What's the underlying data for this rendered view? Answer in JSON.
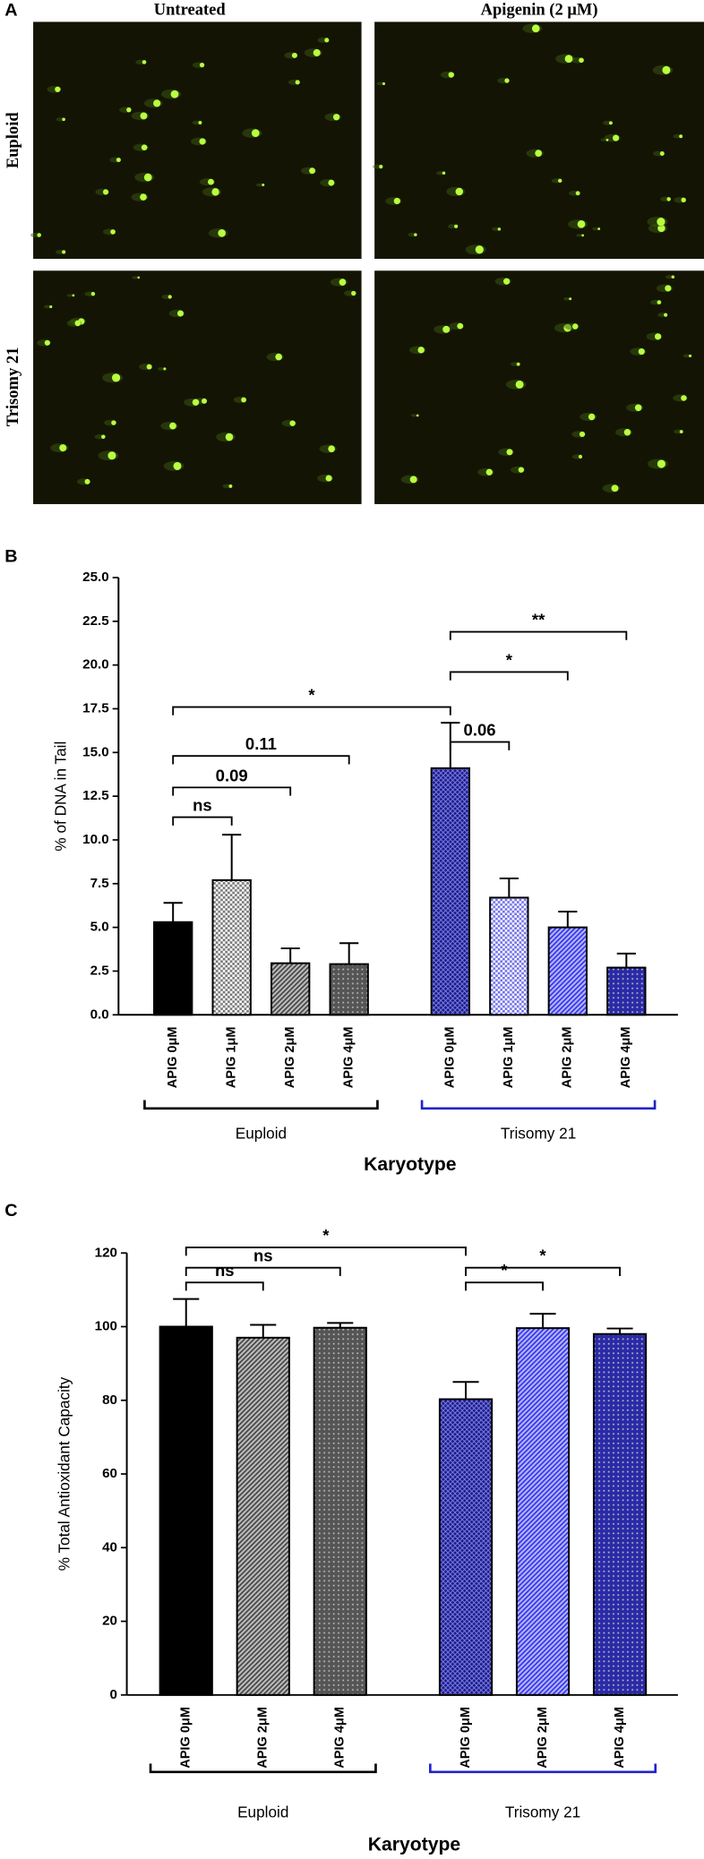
{
  "panel_a": {
    "label": "A",
    "columns": [
      "Untreated",
      "Apigenin (2 μM)"
    ],
    "rows": [
      "Euploid",
      "Trisomy 21"
    ]
  },
  "chart_data": [
    {
      "type": "bar",
      "panel_label": "B",
      "y_label": "% of DNA in Tail",
      "x_label": "Karyotype",
      "categories": [
        "APIG 0μM",
        "APIG 1μM",
        "APIG 2μM",
        "APIG 4μM",
        "APIG 0μM",
        "APIG 1μM",
        "APIG 2μM",
        "APIG 4μM"
      ],
      "values": [
        5.3,
        7.7,
        2.95,
        2.9,
        14.1,
        6.7,
        5.0,
        2.7
      ],
      "errors": [
        1.1,
        2.6,
        0.85,
        1.2,
        2.6,
        1.1,
        0.9,
        0.8
      ],
      "colors": [
        "#000000",
        "#777777",
        "#444444",
        "#555555",
        "#1c1c8a",
        "#7070e8",
        "#3333ee",
        "#2a2aa8"
      ],
      "patterns": [
        "solid",
        "checker",
        "hatch",
        "dots",
        "crosshatch",
        "checker",
        "hatch",
        "dots"
      ],
      "groups": [
        {
          "name": "Euploid",
          "color": "#000000",
          "members": [
            0,
            1,
            2,
            3
          ]
        },
        {
          "name": "Trisomy 21",
          "color": "#2222cc",
          "members": [
            4,
            5,
            6,
            7
          ]
        }
      ],
      "annotations": [
        {
          "text": "ns",
          "from": 0,
          "to": 1,
          "y": 11.3
        },
        {
          "text": "0.09",
          "from": 0,
          "to": 2,
          "y": 13.0
        },
        {
          "text": "0.11",
          "from": 0,
          "to": 3,
          "y": 14.8
        },
        {
          "text": "*",
          "from": 0,
          "to": 4,
          "y": 17.6
        },
        {
          "text": "0.06",
          "from": 4,
          "to": 5,
          "y": 15.6
        },
        {
          "text": "*",
          "from": 4,
          "to": 6,
          "y": 19.6
        },
        {
          "text": "**",
          "from": 4,
          "to": 7,
          "y": 21.9
        }
      ],
      "ylim": [
        0,
        25
      ],
      "yticks": [
        {
          "value": 0,
          "label": "0.0"
        },
        {
          "value": 2.5,
          "label": "2.5"
        },
        {
          "value": 5,
          "label": "5.0"
        },
        {
          "value": 7.5,
          "label": "7.5"
        },
        {
          "value": 10,
          "label": "10.0"
        },
        {
          "value": 12.5,
          "label": "12.5"
        },
        {
          "value": 15,
          "label": "15.0"
        },
        {
          "value": 17.5,
          "label": "17.5"
        },
        {
          "value": 20,
          "label": "20.0"
        },
        {
          "value": 22.5,
          "label": "22.5"
        },
        {
          "value": 25,
          "label": "25.0"
        }
      ]
    },
    {
      "type": "bar",
      "panel_label": "C",
      "y_label": "% Total Antioxidant Capacity",
      "x_label": "Karyotype",
      "categories": [
        "APIG 0μM",
        "APIG 2μM",
        "APIG 4μM",
        "APIG 0μM",
        "APIG 2μM",
        "APIG 4μM"
      ],
      "values": [
        100,
        97,
        99.7,
        80.3,
        99.6,
        98
      ],
      "errors": [
        7.5,
        3.5,
        1.3,
        4.7,
        3.9,
        1.5
      ],
      "colors": [
        "#000000",
        "#444444",
        "#555555",
        "#1c1c8a",
        "#3333ee",
        "#2a2aa8"
      ],
      "patterns": [
        "solid",
        "hatch",
        "dots",
        "crosshatch",
        "hatch",
        "dots"
      ],
      "groups": [
        {
          "name": "Euploid",
          "color": "#000000",
          "members": [
            0,
            1,
            2
          ]
        },
        {
          "name": "Trisomy 21",
          "color": "#2222cc",
          "members": [
            3,
            4,
            5
          ]
        }
      ],
      "annotations": [
        {
          "text": "ns",
          "from": 0,
          "to": 1,
          "y": 112
        },
        {
          "text": "ns",
          "from": 0,
          "to": 2,
          "y": 116
        },
        {
          "text": "*",
          "from": 0,
          "to": 3,
          "y": 121.5
        },
        {
          "text": "*",
          "from": 3,
          "to": 4,
          "y": 112
        },
        {
          "text": "*",
          "from": 3,
          "to": 5,
          "y": 116
        }
      ],
      "ylim": [
        0,
        120
      ],
      "yticks": [
        0,
        20,
        40,
        60,
        80,
        100,
        120
      ]
    }
  ]
}
